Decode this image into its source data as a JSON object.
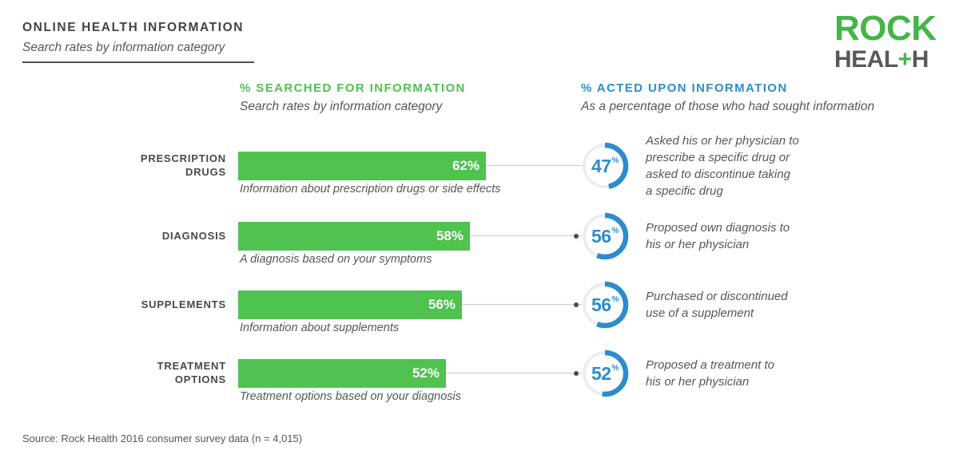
{
  "page": {
    "title": "ONLINE HEALTH INFORMATION",
    "subtitle": "Search rates by information category",
    "source": "Source: Rock Health 2016 consumer survey data (n = 4,015)"
  },
  "logo": {
    "line1": "ROCK",
    "line2_pre": "HEAL",
    "line2_plus": "+",
    "line2_post": "H"
  },
  "columns": {
    "searched": {
      "title": "% SEARCHED FOR INFORMATION",
      "subtitle": "Search rates by information category"
    },
    "acted": {
      "title": "% ACTED UPON INFORMATION",
      "subtitle": "As a percentage of those who had sought information"
    }
  },
  "colors": {
    "green": "#4FC24F",
    "logo_green": "#45B549",
    "blue": "#2D8CCB",
    "donut_track": "#ECEDEF",
    "connector": "#C8CACC",
    "dark_text": "#3F4449",
    "gray_text": "#55575A"
  },
  "percent_sign": "%",
  "chart_data": {
    "type": "bar",
    "title": "ONLINE HEALTH INFORMATION",
    "subtitle": "Search rates by information category",
    "categories": [
      "PRESCRIPTION DRUGS",
      "DIAGNOSIS",
      "SUPPLEMENTS",
      "TREATMENT OPTIONS"
    ],
    "series": [
      {
        "name": "% SEARCHED FOR INFORMATION",
        "unit": "%",
        "values": [
          62,
          58,
          56,
          52
        ]
      },
      {
        "name": "% ACTED UPON INFORMATION",
        "unit": "%",
        "values": [
          47,
          56,
          56,
          52
        ]
      }
    ],
    "xlim": [
      0,
      100
    ],
    "bar_captions": [
      "Information about prescription drugs or side effects",
      "A diagnosis based on your symptoms",
      "Information about supplements",
      "Treatment options based on your diagnosis"
    ],
    "acted_captions": [
      "Asked his or her physician to prescribe a specific drug or asked to discontinue taking a specific drug",
      "Proposed own diagnosis to his or her physician",
      "Purchased or discontinued use of a supplement",
      "Proposed a treatment to his or her physician"
    ],
    "source": "Source: Rock Health 2016 consumer survey data (n = 4,015)"
  },
  "rows": [
    {
      "category_lines": [
        "PRESCRIPTION",
        "DRUGS"
      ],
      "searched_pct": 62,
      "searched_label": "62%",
      "bar_caption": "Information about prescription drugs or side effects",
      "acted_pct": 47,
      "acted_value": "47",
      "acted_caption_lines": [
        "Asked his or her physician to",
        "prescribe a specific drug or",
        "asked to discontinue taking",
        "a specific drug"
      ],
      "connector_dot": false
    },
    {
      "category_lines": [
        "DIAGNOSIS"
      ],
      "searched_pct": 58,
      "searched_label": "58%",
      "bar_caption": "A diagnosis based on your symptoms",
      "acted_pct": 56,
      "acted_value": "56",
      "acted_caption_lines": [
        "Proposed own diagnosis to",
        "his or her physician"
      ],
      "connector_dot": true
    },
    {
      "category_lines": [
        "SUPPLEMENTS"
      ],
      "searched_pct": 56,
      "searched_label": "56%",
      "bar_caption": "Information about supplements",
      "acted_pct": 56,
      "acted_value": "56",
      "acted_caption_lines": [
        "Purchased or discontinued",
        "use of a supplement"
      ],
      "connector_dot": true
    },
    {
      "category_lines": [
        "TREATMENT",
        "OPTIONS"
      ],
      "searched_pct": 52,
      "searched_label": "52%",
      "bar_caption": "Treatment options based on your diagnosis",
      "acted_pct": 52,
      "acted_value": "52",
      "acted_caption_lines": [
        "Proposed a treatment to",
        "his or her physician"
      ],
      "connector_dot": true
    }
  ]
}
